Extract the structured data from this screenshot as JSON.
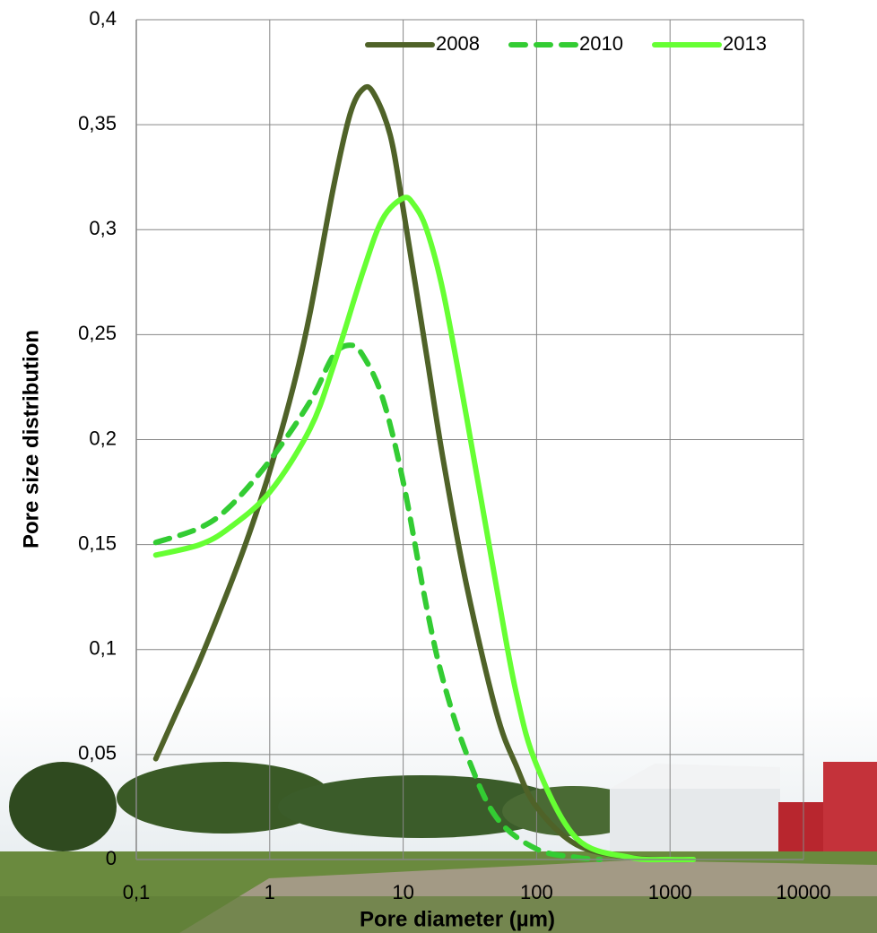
{
  "chart_data": {
    "type": "line",
    "xlabel": "Pore diameter (µm)",
    "ylabel": "Pore size distribution",
    "xscale": "log",
    "xlim": [
      0.1,
      10000
    ],
    "xticks": [
      {
        "value": 0.1,
        "label": "0,1"
      },
      1,
      10,
      100,
      1000,
      10000
    ],
    "ylim": [
      0,
      0.4
    ],
    "yticks": [
      0,
      {
        "value": 0.05,
        "label": "0,05"
      },
      {
        "value": 0.1,
        "label": "0,1"
      },
      {
        "value": 0.15,
        "label": "0,15"
      },
      {
        "value": 0.2,
        "label": "0,2"
      },
      {
        "value": 0.25,
        "label": "0,25"
      },
      {
        "value": 0.3,
        "label": "0,3"
      },
      {
        "value": 0.35,
        "label": "0,35"
      },
      {
        "value": 0.4,
        "label": "0,4"
      }
    ],
    "grid": true,
    "legend": "top-right",
    "series": [
      {
        "name": "2008",
        "color": "#4f6228",
        "dashed": false,
        "x": [
          0.14,
          0.2,
          0.3,
          0.5,
          0.7,
          1,
          1.5,
          2,
          3,
          4,
          5,
          6,
          8,
          10,
          15,
          20,
          30,
          50,
          70,
          100,
          200,
          500,
          1000,
          1500
        ],
        "values": [
          0.048,
          0.07,
          0.095,
          0.13,
          0.155,
          0.185,
          0.225,
          0.26,
          0.32,
          0.355,
          0.367,
          0.365,
          0.345,
          0.31,
          0.24,
          0.19,
          0.13,
          0.07,
          0.045,
          0.025,
          0.007,
          0.001,
          0,
          0
        ]
      },
      {
        "name": "2010",
        "color": "#33cc33",
        "dashed": true,
        "x": [
          0.14,
          0.3,
          0.5,
          1,
          2,
          3,
          4,
          5,
          7,
          10,
          15,
          20,
          30,
          50,
          100,
          200,
          300
        ],
        "values": [
          0.151,
          0.158,
          0.168,
          0.19,
          0.218,
          0.24,
          0.245,
          0.24,
          0.22,
          0.18,
          0.12,
          0.085,
          0.05,
          0.02,
          0.005,
          0.001,
          0
        ]
      },
      {
        "name": "2013",
        "color": "#66ff33",
        "dashed": false,
        "x": [
          0.14,
          0.3,
          0.5,
          1,
          2,
          3,
          5,
          7,
          10,
          12,
          15,
          20,
          30,
          50,
          70,
          100,
          200,
          500,
          1000,
          1500
        ],
        "values": [
          0.145,
          0.15,
          0.158,
          0.175,
          0.205,
          0.235,
          0.28,
          0.305,
          0.315,
          0.312,
          0.3,
          0.27,
          0.21,
          0.13,
          0.08,
          0.045,
          0.01,
          0.001,
          0,
          0
        ]
      }
    ]
  }
}
